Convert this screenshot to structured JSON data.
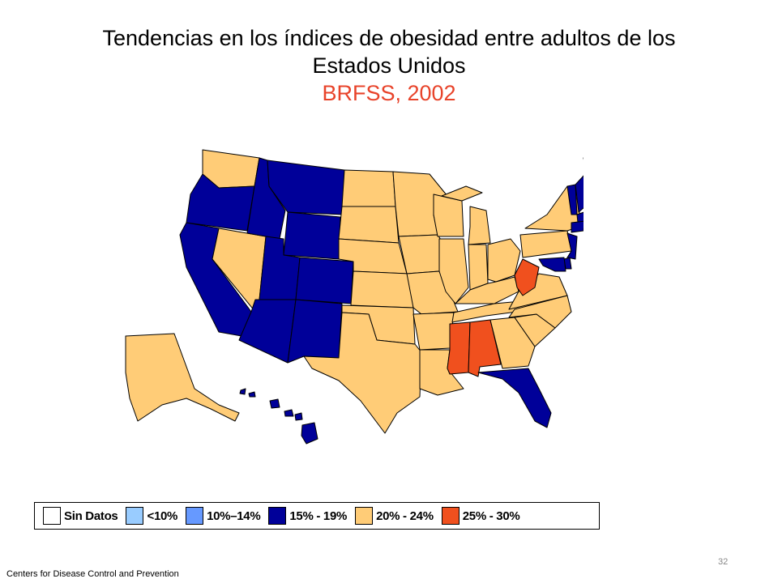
{
  "title": {
    "line1": "Tendencias en los índices de obesidad entre adultos de los",
    "line2": "Estados Unidos",
    "subtitle": "BRFSS, 2002"
  },
  "colors": {
    "no_data": "#ffffff",
    "lt10": "#99ccff",
    "r10_14": "#6699ff",
    "r15_19": "#000099",
    "r20_24": "#ffcc77",
    "r25_30": "#f0501e",
    "subtitle": "#e8432a"
  },
  "legend": [
    {
      "key": "no_data",
      "label": "Sin Datos"
    },
    {
      "key": "lt10",
      "label": "<10%"
    },
    {
      "key": "r10_14",
      "label": "10%–14%"
    },
    {
      "key": "r15_19",
      "label": "15% - 19%"
    },
    {
      "key": "r20_24",
      "label": "20% - 24%"
    },
    {
      "key": "r25_30",
      "label": "25% - 30%"
    }
  ],
  "states": {
    "WA": "20-24",
    "OR": "15-19",
    "CA": "15-19",
    "NV": "20-24",
    "ID": "15-19",
    "MT": "15-19",
    "WY": "15-19",
    "UT": "15-19",
    "AZ": "15-19",
    "CO": "15-19",
    "NM": "15-19",
    "ND": "20-24",
    "SD": "20-24",
    "NE": "20-24",
    "KS": "20-24",
    "OK": "20-24",
    "TX": "20-24",
    "MN": "20-24",
    "IA": "20-24",
    "MO": "20-24",
    "AR": "20-24",
    "LA": "20-24",
    "WI": "20-24",
    "IL": "20-24",
    "MI": "20-24",
    "IN": "20-24",
    "OH": "20-24",
    "KY": "20-24",
    "TN": "20-24",
    "MS": "25-30",
    "AL": "25-30",
    "GA": "20-24",
    "FL": "15-19",
    "SC": "20-24",
    "NC": "20-24",
    "VA": "20-24",
    "WV": "25-30",
    "PA": "20-24",
    "NY": "20-24",
    "ME": "20-24",
    "VT": "15-19",
    "NH": "15-19",
    "MA": "15-19",
    "CT": "15-19",
    "RI": "15-19",
    "NJ": "15-19",
    "DE": "15-19",
    "MD": "15-19",
    "AK": "20-24",
    "HI": "15-19"
  },
  "footer": "Centers for Disease Control and Prevention",
  "page_number": "32"
}
